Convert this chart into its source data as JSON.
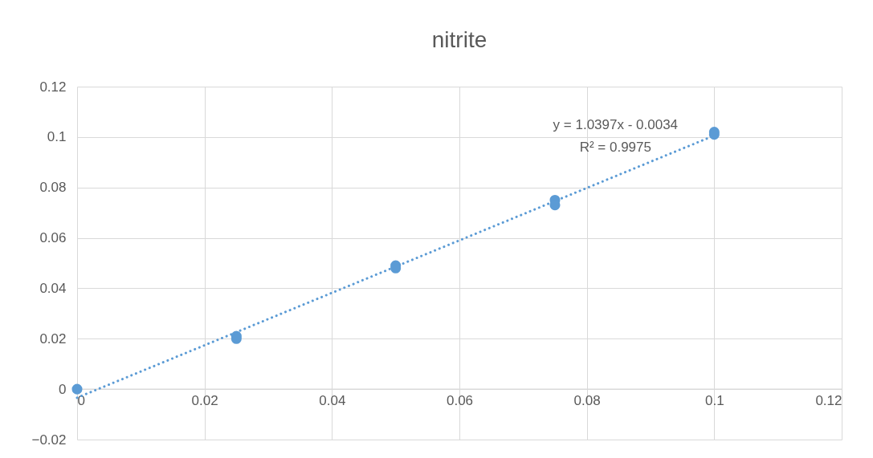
{
  "chart_data": {
    "type": "scatter",
    "title": "nitrite",
    "xlim": [
      0,
      0.12
    ],
    "ylim": [
      -0.02,
      0.12
    ],
    "xticks": [
      0,
      0.02,
      0.04,
      0.06,
      0.08,
      0.1,
      0.12
    ],
    "yticks": [
      -0.02,
      0,
      0.02,
      0.04,
      0.06,
      0.08,
      0.1,
      0.12
    ],
    "grid": true,
    "series": [
      {
        "marker": "circle",
        "color": "#5b9bd5",
        "x": [
          0,
          0.025,
          0.025,
          0.05,
          0.05,
          0.075,
          0.075,
          0.1,
          0.1
        ],
        "values": [
          0,
          0.021,
          0.02,
          0.049,
          0.048,
          0.075,
          0.073,
          0.102,
          0.101
        ]
      },
      {
        "type": "line",
        "color": "#5b9bd5",
        "line_style": "dotted",
        "x": [
          0,
          0.1
        ],
        "values": [
          -0.0034,
          0.1006
        ]
      }
    ],
    "annotations": [
      "y = 1.0397x - 0.0034",
      "R² = 0.9975"
    ]
  }
}
